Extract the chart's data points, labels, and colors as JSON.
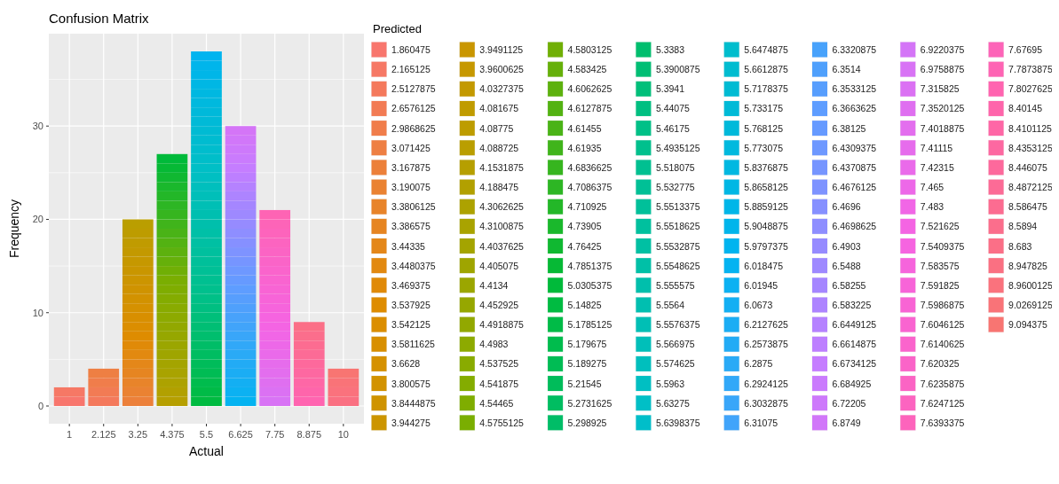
{
  "chart_data": {
    "type": "bar",
    "title": "Confusion Matrix",
    "xlabel": "Actual",
    "ylabel": "Frequency",
    "legend_title": "Predicted",
    "legend": "right",
    "grid": true,
    "stacked": true,
    "categories": [
      "1",
      "2.125",
      "3.25",
      "4.375",
      "5.5",
      "6.625",
      "7.75",
      "8.875",
      "10"
    ],
    "ylim": [
      -1.9,
      39.9
    ],
    "yticks": [
      0,
      10,
      20,
      30
    ],
    "series": [
      {
        "name": "1.860475",
        "color": "#F8766D",
        "values": [
          1,
          null,
          null,
          null,
          null,
          null,
          null,
          null,
          null
        ]
      },
      {
        "name": "2.165125",
        "color": "#F67865",
        "values": [
          1,
          null,
          null,
          null,
          null,
          null,
          null,
          null,
          null
        ]
      },
      {
        "name": "2.5127875",
        "color": "#F4795C",
        "values": [
          null,
          1,
          null,
          null,
          null,
          null,
          null,
          null,
          null
        ]
      },
      {
        "name": "2.6576125",
        "color": "#F27B54",
        "values": [
          null,
          1,
          null,
          null,
          null,
          null,
          null,
          null,
          null
        ]
      },
      {
        "name": "2.9868625",
        "color": "#F07D4B",
        "values": [
          null,
          1,
          null,
          null,
          null,
          null,
          null,
          null,
          null
        ]
      },
      {
        "name": "3.071425",
        "color": "#EE7F43",
        "values": [
          null,
          1,
          null,
          null,
          null,
          null,
          null,
          null,
          null
        ]
      },
      {
        "name": "3.167875",
        "color": "#EC803A",
        "values": [
          null,
          null,
          1,
          null,
          null,
          null,
          null,
          null,
          null
        ]
      },
      {
        "name": "3.190075",
        "color": "#EA8232",
        "values": [
          null,
          null,
          1,
          null,
          null,
          null,
          null,
          null,
          null
        ]
      },
      {
        "name": "3.3806125",
        "color": "#E8842A",
        "values": [
          null,
          null,
          1,
          null,
          null,
          null,
          null,
          null,
          null
        ]
      },
      {
        "name": "3.386575",
        "color": "#E68521",
        "values": [
          null,
          null,
          1,
          null,
          null,
          null,
          null,
          null,
          null
        ]
      },
      {
        "name": "3.44335",
        "color": "#E48719",
        "values": [
          null,
          null,
          1,
          null,
          null,
          null,
          null,
          null,
          null
        ]
      },
      {
        "name": "3.4480375",
        "color": "#E28910",
        "values": [
          null,
          null,
          1,
          null,
          null,
          null,
          null,
          null,
          null
        ]
      },
      {
        "name": "3.469375",
        "color": "#E08A08",
        "values": [
          null,
          null,
          1,
          null,
          null,
          null,
          null,
          null,
          null
        ]
      },
      {
        "name": "3.537925",
        "color": "#DE8C00",
        "values": [
          null,
          null,
          1,
          null,
          null,
          null,
          null,
          null,
          null
        ]
      },
      {
        "name": "3.542125",
        "color": "#DB8E00",
        "values": [
          null,
          null,
          1,
          null,
          null,
          null,
          null,
          null,
          null
        ]
      },
      {
        "name": "3.5811625",
        "color": "#D88F00",
        "values": [
          null,
          null,
          1,
          null,
          null,
          null,
          null,
          null,
          null
        ]
      },
      {
        "name": "3.6628",
        "color": "#D59100",
        "values": [
          null,
          null,
          1,
          null,
          null,
          null,
          null,
          null,
          null
        ]
      },
      {
        "name": "3.800575",
        "color": "#D29200",
        "values": [
          null,
          null,
          1,
          null,
          null,
          null,
          null,
          null,
          null
        ]
      },
      {
        "name": "3.8444875",
        "color": "#CF9300",
        "values": [
          null,
          null,
          1,
          null,
          null,
          null,
          null,
          null,
          null
        ]
      },
      {
        "name": "3.944275",
        "color": "#CC9500",
        "values": [
          null,
          null,
          1,
          null,
          null,
          null,
          null,
          null,
          null
        ]
      },
      {
        "name": "3.9491125",
        "color": "#C99600",
        "values": [
          null,
          null,
          1,
          null,
          null,
          null,
          null,
          null,
          null
        ]
      },
      {
        "name": "3.9600625",
        "color": "#C69800",
        "values": [
          null,
          null,
          1,
          null,
          null,
          null,
          null,
          null,
          null
        ]
      },
      {
        "name": "4.0327375",
        "color": "#C39900",
        "values": [
          null,
          null,
          1,
          null,
          null,
          null,
          null,
          null,
          null
        ]
      },
      {
        "name": "4.081675",
        "color": "#C09B00",
        "values": [
          null,
          null,
          1,
          null,
          null,
          null,
          null,
          null,
          null
        ]
      },
      {
        "name": "4.08775",
        "color": "#BD9C00",
        "values": [
          null,
          null,
          1,
          null,
          null,
          null,
          null,
          null,
          null
        ]
      },
      {
        "name": "4.088725",
        "color": "#BA9E00",
        "values": [
          null,
          null,
          1,
          null,
          null,
          null,
          null,
          null,
          null
        ]
      },
      {
        "name": "4.1531875",
        "color": "#B69F00",
        "values": [
          null,
          null,
          null,
          1,
          null,
          null,
          null,
          null,
          null
        ]
      },
      {
        "name": "4.188475",
        "color": "#B2A000",
        "values": [
          null,
          null,
          null,
          1,
          null,
          null,
          null,
          null,
          null
        ]
      },
      {
        "name": "4.3062625",
        "color": "#ADA200",
        "values": [
          null,
          null,
          null,
          1,
          null,
          null,
          null,
          null,
          null
        ]
      },
      {
        "name": "4.3100875",
        "color": "#A9A300",
        "values": [
          null,
          null,
          null,
          1,
          null,
          null,
          null,
          null,
          null
        ]
      },
      {
        "name": "4.4037625",
        "color": "#A4A400",
        "values": [
          null,
          null,
          null,
          1,
          null,
          null,
          null,
          null,
          null
        ]
      },
      {
        "name": "4.405075",
        "color": "#9FA500",
        "values": [
          null,
          null,
          null,
          1,
          null,
          null,
          null,
          null,
          null
        ]
      },
      {
        "name": "4.4134",
        "color": "#9BA600",
        "values": [
          null,
          null,
          null,
          1,
          null,
          null,
          null,
          null,
          null
        ]
      },
      {
        "name": "4.452925",
        "color": "#96A700",
        "values": [
          null,
          null,
          null,
          1,
          null,
          null,
          null,
          null,
          null
        ]
      },
      {
        "name": "4.4918875",
        "color": "#92A800",
        "values": [
          null,
          null,
          null,
          1,
          null,
          null,
          null,
          null,
          null
        ]
      },
      {
        "name": "4.4983",
        "color": "#8DAA00",
        "values": [
          null,
          null,
          null,
          1,
          null,
          null,
          null,
          null,
          null
        ]
      },
      {
        "name": "4.537525",
        "color": "#89AB00",
        "values": [
          null,
          null,
          null,
          1,
          null,
          null,
          null,
          null,
          null
        ]
      },
      {
        "name": "4.541875",
        "color": "#84AC00",
        "values": [
          null,
          null,
          null,
          1,
          null,
          null,
          null,
          null,
          null
        ]
      },
      {
        "name": "4.54465",
        "color": "#7FAD00",
        "values": [
          null,
          null,
          null,
          1,
          null,
          null,
          null,
          null,
          null
        ]
      },
      {
        "name": "4.5755125",
        "color": "#7AAE01",
        "values": [
          null,
          null,
          null,
          1,
          null,
          null,
          null,
          null,
          null
        ]
      },
      {
        "name": "4.5803125",
        "color": "#70AF05",
        "values": [
          null,
          null,
          null,
          1,
          null,
          null,
          null,
          null,
          null
        ]
      },
      {
        "name": "4.583425",
        "color": "#66B00A",
        "values": [
          null,
          null,
          null,
          1,
          null,
          null,
          null,
          null,
          null
        ]
      },
      {
        "name": "4.6062625",
        "color": "#5DB10E",
        "values": [
          null,
          null,
          null,
          1,
          null,
          null,
          null,
          null,
          null
        ]
      },
      {
        "name": "4.6127875",
        "color": "#53B212",
        "values": [
          null,
          null,
          null,
          1,
          null,
          null,
          null,
          null,
          null
        ]
      },
      {
        "name": "4.61455",
        "color": "#4AB317",
        "values": [
          null,
          null,
          null,
          1,
          null,
          null,
          null,
          null,
          null
        ]
      },
      {
        "name": "4.61935",
        "color": "#40B41B",
        "values": [
          null,
          null,
          null,
          1,
          null,
          null,
          null,
          null,
          null
        ]
      },
      {
        "name": "4.6836625",
        "color": "#36B51F",
        "values": [
          null,
          null,
          null,
          1,
          null,
          null,
          null,
          null,
          null
        ]
      },
      {
        "name": "4.7086375",
        "color": "#2DB624",
        "values": [
          null,
          null,
          null,
          1,
          null,
          null,
          null,
          null,
          null
        ]
      },
      {
        "name": "4.710925",
        "color": "#23B728",
        "values": [
          null,
          null,
          null,
          1,
          null,
          null,
          null,
          null,
          null
        ]
      },
      {
        "name": "4.73905",
        "color": "#1AB82C",
        "values": [
          null,
          null,
          null,
          1,
          null,
          null,
          null,
          null,
          null
        ]
      },
      {
        "name": "4.76425",
        "color": "#10B831",
        "values": [
          null,
          null,
          null,
          1,
          null,
          null,
          null,
          null,
          null
        ]
      },
      {
        "name": "4.7851375",
        "color": "#06B935",
        "values": [
          null,
          null,
          null,
          1,
          null,
          null,
          null,
          null,
          null
        ]
      },
      {
        "name": "5.0305375",
        "color": "#00BA3A",
        "values": [
          null,
          null,
          null,
          1,
          null,
          null,
          null,
          null,
          null
        ]
      },
      {
        "name": "5.14825",
        "color": "#00BB41",
        "values": [
          null,
          null,
          null,
          null,
          1,
          null,
          null,
          null,
          null
        ]
      },
      {
        "name": "5.1785125",
        "color": "#00BB47",
        "values": [
          null,
          null,
          null,
          null,
          1,
          null,
          null,
          null,
          null
        ]
      },
      {
        "name": "5.179675",
        "color": "#00BC4D",
        "values": [
          null,
          null,
          null,
          null,
          1,
          null,
          null,
          null,
          null
        ]
      },
      {
        "name": "5.189275",
        "color": "#00BC54",
        "values": [
          null,
          null,
          null,
          null,
          1,
          null,
          null,
          null,
          null
        ]
      },
      {
        "name": "5.21545",
        "color": "#00BC5A",
        "values": [
          null,
          null,
          null,
          null,
          1,
          null,
          null,
          null,
          null
        ]
      },
      {
        "name": "5.2731625",
        "color": "#00BD61",
        "values": [
          null,
          null,
          null,
          null,
          1,
          null,
          null,
          null,
          null
        ]
      },
      {
        "name": "5.298925",
        "color": "#00BD67",
        "values": [
          null,
          null,
          null,
          null,
          1,
          null,
          null,
          null,
          null
        ]
      },
      {
        "name": "5.3383",
        "color": "#00BE6E",
        "values": [
          null,
          null,
          null,
          null,
          1,
          null,
          null,
          null,
          null
        ]
      },
      {
        "name": "5.3900875",
        "color": "#00BE74",
        "values": [
          null,
          null,
          null,
          null,
          1,
          null,
          null,
          null,
          null
        ]
      },
      {
        "name": "5.3941",
        "color": "#00BF7A",
        "values": [
          null,
          null,
          null,
          null,
          1,
          null,
          null,
          null,
          null
        ]
      },
      {
        "name": "5.44075",
        "color": "#00BF81",
        "values": [
          null,
          null,
          null,
          null,
          1,
          null,
          null,
          null,
          null
        ]
      },
      {
        "name": "5.46175",
        "color": "#00C087",
        "values": [
          null,
          null,
          null,
          null,
          1,
          null,
          null,
          null,
          null
        ]
      },
      {
        "name": "5.4935125",
        "color": "#00C08D",
        "values": [
          null,
          null,
          null,
          null,
          1,
          null,
          null,
          null,
          null
        ]
      },
      {
        "name": "5.518075",
        "color": "#00C091",
        "values": [
          null,
          null,
          null,
          null,
          1,
          null,
          null,
          null,
          null
        ]
      },
      {
        "name": "5.532775",
        "color": "#00C096",
        "values": [
          null,
          null,
          null,
          null,
          1,
          null,
          null,
          null,
          null
        ]
      },
      {
        "name": "5.5513375",
        "color": "#00C09A",
        "values": [
          null,
          null,
          null,
          null,
          1,
          null,
          null,
          null,
          null
        ]
      },
      {
        "name": "5.5518625",
        "color": "#00C09E",
        "values": [
          null,
          null,
          null,
          null,
          1,
          null,
          null,
          null,
          null
        ]
      },
      {
        "name": "5.5532875",
        "color": "#00C0A3",
        "values": [
          null,
          null,
          null,
          null,
          1,
          null,
          null,
          null,
          null
        ]
      },
      {
        "name": "5.5548625",
        "color": "#00C0A7",
        "values": [
          null,
          null,
          null,
          null,
          1,
          null,
          null,
          null,
          null
        ]
      },
      {
        "name": "5.555575",
        "color": "#00BFAC",
        "values": [
          null,
          null,
          null,
          null,
          1,
          null,
          null,
          null,
          null
        ]
      },
      {
        "name": "5.5564",
        "color": "#00BFB0",
        "values": [
          null,
          null,
          null,
          null,
          1,
          null,
          null,
          null,
          null
        ]
      },
      {
        "name": "5.5576375",
        "color": "#00BFB5",
        "values": [
          null,
          null,
          null,
          null,
          1,
          null,
          null,
          null,
          null
        ]
      },
      {
        "name": "5.566975",
        "color": "#00BFB9",
        "values": [
          null,
          null,
          null,
          null,
          1,
          null,
          null,
          null,
          null
        ]
      },
      {
        "name": "5.574625",
        "color": "#00BFBD",
        "values": [
          null,
          null,
          null,
          null,
          1,
          null,
          null,
          null,
          null
        ]
      },
      {
        "name": "5.5963",
        "color": "#00BFC2",
        "values": [
          null,
          null,
          null,
          null,
          1,
          null,
          null,
          null,
          null
        ]
      },
      {
        "name": "5.63275",
        "color": "#00BFC6",
        "values": [
          null,
          null,
          null,
          null,
          1,
          null,
          null,
          null,
          null
        ]
      },
      {
        "name": "5.6398375",
        "color": "#00BEC9",
        "values": [
          null,
          null,
          null,
          null,
          1,
          null,
          null,
          null,
          null
        ]
      },
      {
        "name": "5.6474875",
        "color": "#00BDCD",
        "values": [
          null,
          null,
          null,
          null,
          1,
          null,
          null,
          null,
          null
        ]
      },
      {
        "name": "5.6612875",
        "color": "#00BCD0",
        "values": [
          null,
          null,
          null,
          null,
          1,
          null,
          null,
          null,
          null
        ]
      },
      {
        "name": "5.7178375",
        "color": "#00BBD3",
        "values": [
          null,
          null,
          null,
          null,
          1,
          null,
          null,
          null,
          null
        ]
      },
      {
        "name": "5.733175",
        "color": "#00BAD7",
        "values": [
          null,
          null,
          null,
          null,
          1,
          null,
          null,
          null,
          null
        ]
      },
      {
        "name": "5.768125",
        "color": "#00B9DA",
        "values": [
          null,
          null,
          null,
          null,
          1,
          null,
          null,
          null,
          null
        ]
      },
      {
        "name": "5.773075",
        "color": "#00B9DE",
        "values": [
          null,
          null,
          null,
          null,
          1,
          null,
          null,
          null,
          null
        ]
      },
      {
        "name": "5.8376875",
        "color": "#00B8E1",
        "values": [
          null,
          null,
          null,
          null,
          1,
          null,
          null,
          null,
          null
        ]
      },
      {
        "name": "5.8658125",
        "color": "#00B7E4",
        "values": [
          null,
          null,
          null,
          null,
          1,
          null,
          null,
          null,
          null
        ]
      },
      {
        "name": "5.8859125",
        "color": "#00B6E8",
        "values": [
          null,
          null,
          null,
          null,
          1,
          null,
          null,
          null,
          null
        ]
      },
      {
        "name": "5.9048875",
        "color": "#00B5EB",
        "values": [
          null,
          null,
          null,
          null,
          1,
          null,
          null,
          null,
          null
        ]
      },
      {
        "name": "5.9797375",
        "color": "#00B4EF",
        "values": [
          null,
          null,
          null,
          null,
          1,
          null,
          null,
          null,
          null
        ]
      },
      {
        "name": "6.018475",
        "color": "#04B3F1",
        "values": [
          null,
          null,
          null,
          null,
          null,
          1,
          null,
          null,
          null
        ]
      },
      {
        "name": "6.01945",
        "color": "#0CB1F2",
        "values": [
          null,
          null,
          null,
          null,
          null,
          1,
          null,
          null,
          null
        ]
      },
      {
        "name": "6.0673",
        "color": "#13AFF3",
        "values": [
          null,
          null,
          null,
          null,
          null,
          1,
          null,
          null,
          null
        ]
      },
      {
        "name": "6.2127625",
        "color": "#1BADF4",
        "values": [
          null,
          null,
          null,
          null,
          null,
          1,
          null,
          null,
          null
        ]
      },
      {
        "name": "6.2573875",
        "color": "#22ABF5",
        "values": [
          null,
          null,
          null,
          null,
          null,
          1,
          null,
          null,
          null
        ]
      },
      {
        "name": "6.2875",
        "color": "#2AAAF6",
        "values": [
          null,
          null,
          null,
          null,
          null,
          1,
          null,
          null,
          null
        ]
      },
      {
        "name": "6.2924125",
        "color": "#31A8F8",
        "values": [
          null,
          null,
          null,
          null,
          null,
          1,
          null,
          null,
          null
        ]
      },
      {
        "name": "6.3032875",
        "color": "#39A6F9",
        "values": [
          null,
          null,
          null,
          null,
          null,
          1,
          null,
          null,
          null
        ]
      },
      {
        "name": "6.31075",
        "color": "#41A4FA",
        "values": [
          null,
          null,
          null,
          null,
          null,
          1,
          null,
          null,
          null
        ]
      },
      {
        "name": "6.3320875",
        "color": "#48A2FB",
        "values": [
          null,
          null,
          null,
          null,
          null,
          1,
          null,
          null,
          null
        ]
      },
      {
        "name": "6.3514",
        "color": "#4FA0FC",
        "values": [
          null,
          null,
          null,
          null,
          null,
          1,
          null,
          null,
          null
        ]
      },
      {
        "name": "6.3533125",
        "color": "#579EFD",
        "values": [
          null,
          null,
          null,
          null,
          null,
          1,
          null,
          null,
          null
        ]
      },
      {
        "name": "6.3663625",
        "color": "#5E9DFF",
        "values": [
          null,
          null,
          null,
          null,
          null,
          1,
          null,
          null,
          null
        ]
      },
      {
        "name": "6.38125",
        "color": "#669AFF",
        "values": [
          null,
          null,
          null,
          null,
          null,
          1,
          null,
          null,
          null
        ]
      },
      {
        "name": "6.4309375",
        "color": "#6E98FF",
        "values": [
          null,
          null,
          null,
          null,
          null,
          1,
          null,
          null,
          null
        ]
      },
      {
        "name": "6.4370875",
        "color": "#7695FF",
        "values": [
          null,
          null,
          null,
          null,
          null,
          1,
          null,
          null,
          null
        ]
      },
      {
        "name": "6.4676125",
        "color": "#7E93FF",
        "values": [
          null,
          null,
          null,
          null,
          null,
          1,
          null,
          null,
          null
        ]
      },
      {
        "name": "6.4696",
        "color": "#8690FF",
        "values": [
          null,
          null,
          null,
          null,
          null,
          1,
          null,
          null,
          null
        ]
      },
      {
        "name": "6.4698625",
        "color": "#8E8EFF",
        "values": [
          null,
          null,
          null,
          null,
          null,
          1,
          null,
          null,
          null
        ]
      },
      {
        "name": "6.4903",
        "color": "#968BFF",
        "values": [
          null,
          null,
          null,
          null,
          null,
          1,
          null,
          null,
          null
        ]
      },
      {
        "name": "6.5488",
        "color": "#9E89FF",
        "values": [
          null,
          null,
          null,
          null,
          null,
          1,
          null,
          null,
          null
        ]
      },
      {
        "name": "6.58255",
        "color": "#A586FF",
        "values": [
          null,
          null,
          null,
          null,
          null,
          1,
          null,
          null,
          null
        ]
      },
      {
        "name": "6.583225",
        "color": "#AD84FF",
        "values": [
          null,
          null,
          null,
          null,
          null,
          1,
          null,
          null,
          null
        ]
      },
      {
        "name": "6.6449125",
        "color": "#B582FF",
        "values": [
          null,
          null,
          null,
          null,
          null,
          1,
          null,
          null,
          null
        ]
      },
      {
        "name": "6.6614875",
        "color": "#BD7FFF",
        "values": [
          null,
          null,
          null,
          null,
          null,
          1,
          null,
          null,
          null
        ]
      },
      {
        "name": "6.6734125",
        "color": "#C57DFF",
        "values": [
          null,
          null,
          null,
          null,
          null,
          1,
          null,
          null,
          null
        ]
      },
      {
        "name": "6.684925",
        "color": "#CA7BFD",
        "values": [
          null,
          null,
          null,
          null,
          null,
          1,
          null,
          null,
          null
        ]
      },
      {
        "name": "6.72205",
        "color": "#CD79FB",
        "values": [
          null,
          null,
          null,
          null,
          null,
          1,
          null,
          null,
          null
        ]
      },
      {
        "name": "6.8749",
        "color": "#D177F9",
        "values": [
          null,
          null,
          null,
          null,
          null,
          1,
          null,
          null,
          null
        ]
      },
      {
        "name": "6.9220375",
        "color": "#D475F7",
        "values": [
          null,
          null,
          null,
          null,
          null,
          1,
          null,
          null,
          null
        ]
      },
      {
        "name": "6.9758875",
        "color": "#D873F5",
        "values": [
          null,
          null,
          null,
          null,
          null,
          null,
          1,
          null,
          null
        ]
      },
      {
        "name": "7.315825",
        "color": "#DB71F3",
        "values": [
          null,
          null,
          null,
          null,
          null,
          null,
          1,
          null,
          null
        ]
      },
      {
        "name": "7.3520125",
        "color": "#DF6FF0",
        "values": [
          null,
          null,
          null,
          null,
          null,
          null,
          1,
          null,
          null
        ]
      },
      {
        "name": "7.4018875",
        "color": "#E36EEE",
        "values": [
          null,
          null,
          null,
          null,
          null,
          null,
          1,
          null,
          null
        ]
      },
      {
        "name": "7.41115",
        "color": "#E66CEC",
        "values": [
          null,
          null,
          null,
          null,
          null,
          null,
          1,
          null,
          null
        ]
      },
      {
        "name": "7.42315",
        "color": "#EA6AEA",
        "values": [
          null,
          null,
          null,
          null,
          null,
          null,
          1,
          null,
          null
        ]
      },
      {
        "name": "7.465",
        "color": "#ED68E8",
        "values": [
          null,
          null,
          null,
          null,
          null,
          null,
          1,
          null,
          null
        ]
      },
      {
        "name": "7.483",
        "color": "#F166E6",
        "values": [
          null,
          null,
          null,
          null,
          null,
          null,
          1,
          null,
          null
        ]
      },
      {
        "name": "7.521625",
        "color": "#F464E3",
        "values": [
          null,
          null,
          null,
          null,
          null,
          null,
          1,
          null,
          null
        ]
      },
      {
        "name": "7.5409375",
        "color": "#F664E0",
        "values": [
          null,
          null,
          null,
          null,
          null,
          null,
          1,
          null,
          null
        ]
      },
      {
        "name": "7.583575",
        "color": "#F664DC",
        "values": [
          null,
          null,
          null,
          null,
          null,
          null,
          1,
          null,
          null
        ]
      },
      {
        "name": "7.591825",
        "color": "#F764D8",
        "values": [
          null,
          null,
          null,
          null,
          null,
          null,
          1,
          null,
          null
        ]
      },
      {
        "name": "7.5986875",
        "color": "#F864D4",
        "values": [
          null,
          null,
          null,
          null,
          null,
          null,
          1,
          null,
          null
        ]
      },
      {
        "name": "7.6046125",
        "color": "#F964D0",
        "values": [
          null,
          null,
          null,
          null,
          null,
          null,
          1,
          null,
          null
        ]
      },
      {
        "name": "7.6140625",
        "color": "#FA64CC",
        "values": [
          null,
          null,
          null,
          null,
          null,
          null,
          1,
          null,
          null
        ]
      },
      {
        "name": "7.620325",
        "color": "#FA64C8",
        "values": [
          null,
          null,
          null,
          null,
          null,
          null,
          1,
          null,
          null
        ]
      },
      {
        "name": "7.6235875",
        "color": "#FB64C4",
        "values": [
          null,
          null,
          null,
          null,
          null,
          null,
          1,
          null,
          null
        ]
      },
      {
        "name": "7.6247125",
        "color": "#FC64C0",
        "values": [
          null,
          null,
          null,
          null,
          null,
          null,
          1,
          null,
          null
        ]
      },
      {
        "name": "7.6393375",
        "color": "#FD64BC",
        "values": [
          null,
          null,
          null,
          null,
          null,
          null,
          1,
          null,
          null
        ]
      },
      {
        "name": "7.67695",
        "color": "#FD64B8",
        "values": [
          null,
          null,
          null,
          null,
          null,
          null,
          1,
          null,
          null
        ]
      },
      {
        "name": "7.7873875",
        "color": "#FE64B4",
        "values": [
          null,
          null,
          null,
          null,
          null,
          null,
          1,
          null,
          null
        ]
      },
      {
        "name": "7.8027625",
        "color": "#FF64B0",
        "values": [
          null,
          null,
          null,
          null,
          null,
          null,
          null,
          1,
          null
        ]
      },
      {
        "name": "8.40145",
        "color": "#FE65AB",
        "values": [
          null,
          null,
          null,
          null,
          null,
          null,
          null,
          1,
          null
        ]
      },
      {
        "name": "8.4101125",
        "color": "#FE67A6",
        "values": [
          null,
          null,
          null,
          null,
          null,
          null,
          null,
          1,
          null
        ]
      },
      {
        "name": "8.4353125",
        "color": "#FD68A1",
        "values": [
          null,
          null,
          null,
          null,
          null,
          null,
          null,
          1,
          null
        ]
      },
      {
        "name": "8.446075",
        "color": "#FD699C",
        "values": [
          null,
          null,
          null,
          null,
          null,
          null,
          null,
          1,
          null
        ]
      },
      {
        "name": "8.4872125",
        "color": "#FC6B96",
        "values": [
          null,
          null,
          null,
          null,
          null,
          null,
          null,
          1,
          null
        ]
      },
      {
        "name": "8.586475",
        "color": "#FC6C91",
        "values": [
          null,
          null,
          null,
          null,
          null,
          null,
          null,
          1,
          null
        ]
      },
      {
        "name": "8.5894",
        "color": "#FB6E8C",
        "values": [
          null,
          null,
          null,
          null,
          null,
          null,
          null,
          1,
          null
        ]
      },
      {
        "name": "8.683",
        "color": "#FB6F87",
        "values": [
          null,
          null,
          null,
          null,
          null,
          null,
          null,
          1,
          null
        ]
      },
      {
        "name": "8.947825",
        "color": "#FA7082",
        "values": [
          null,
          null,
          null,
          null,
          null,
          null,
          null,
          null,
          1
        ]
      },
      {
        "name": "8.9600125",
        "color": "#FA727D",
        "values": [
          null,
          null,
          null,
          null,
          null,
          null,
          null,
          null,
          1
        ]
      },
      {
        "name": "9.0269125",
        "color": "#F97378",
        "values": [
          null,
          null,
          null,
          null,
          null,
          null,
          null,
          null,
          1
        ]
      },
      {
        "name": "9.094375",
        "color": "#F87572",
        "values": [
          null,
          null,
          null,
          null,
          null,
          null,
          null,
          null,
          1
        ]
      }
    ]
  }
}
